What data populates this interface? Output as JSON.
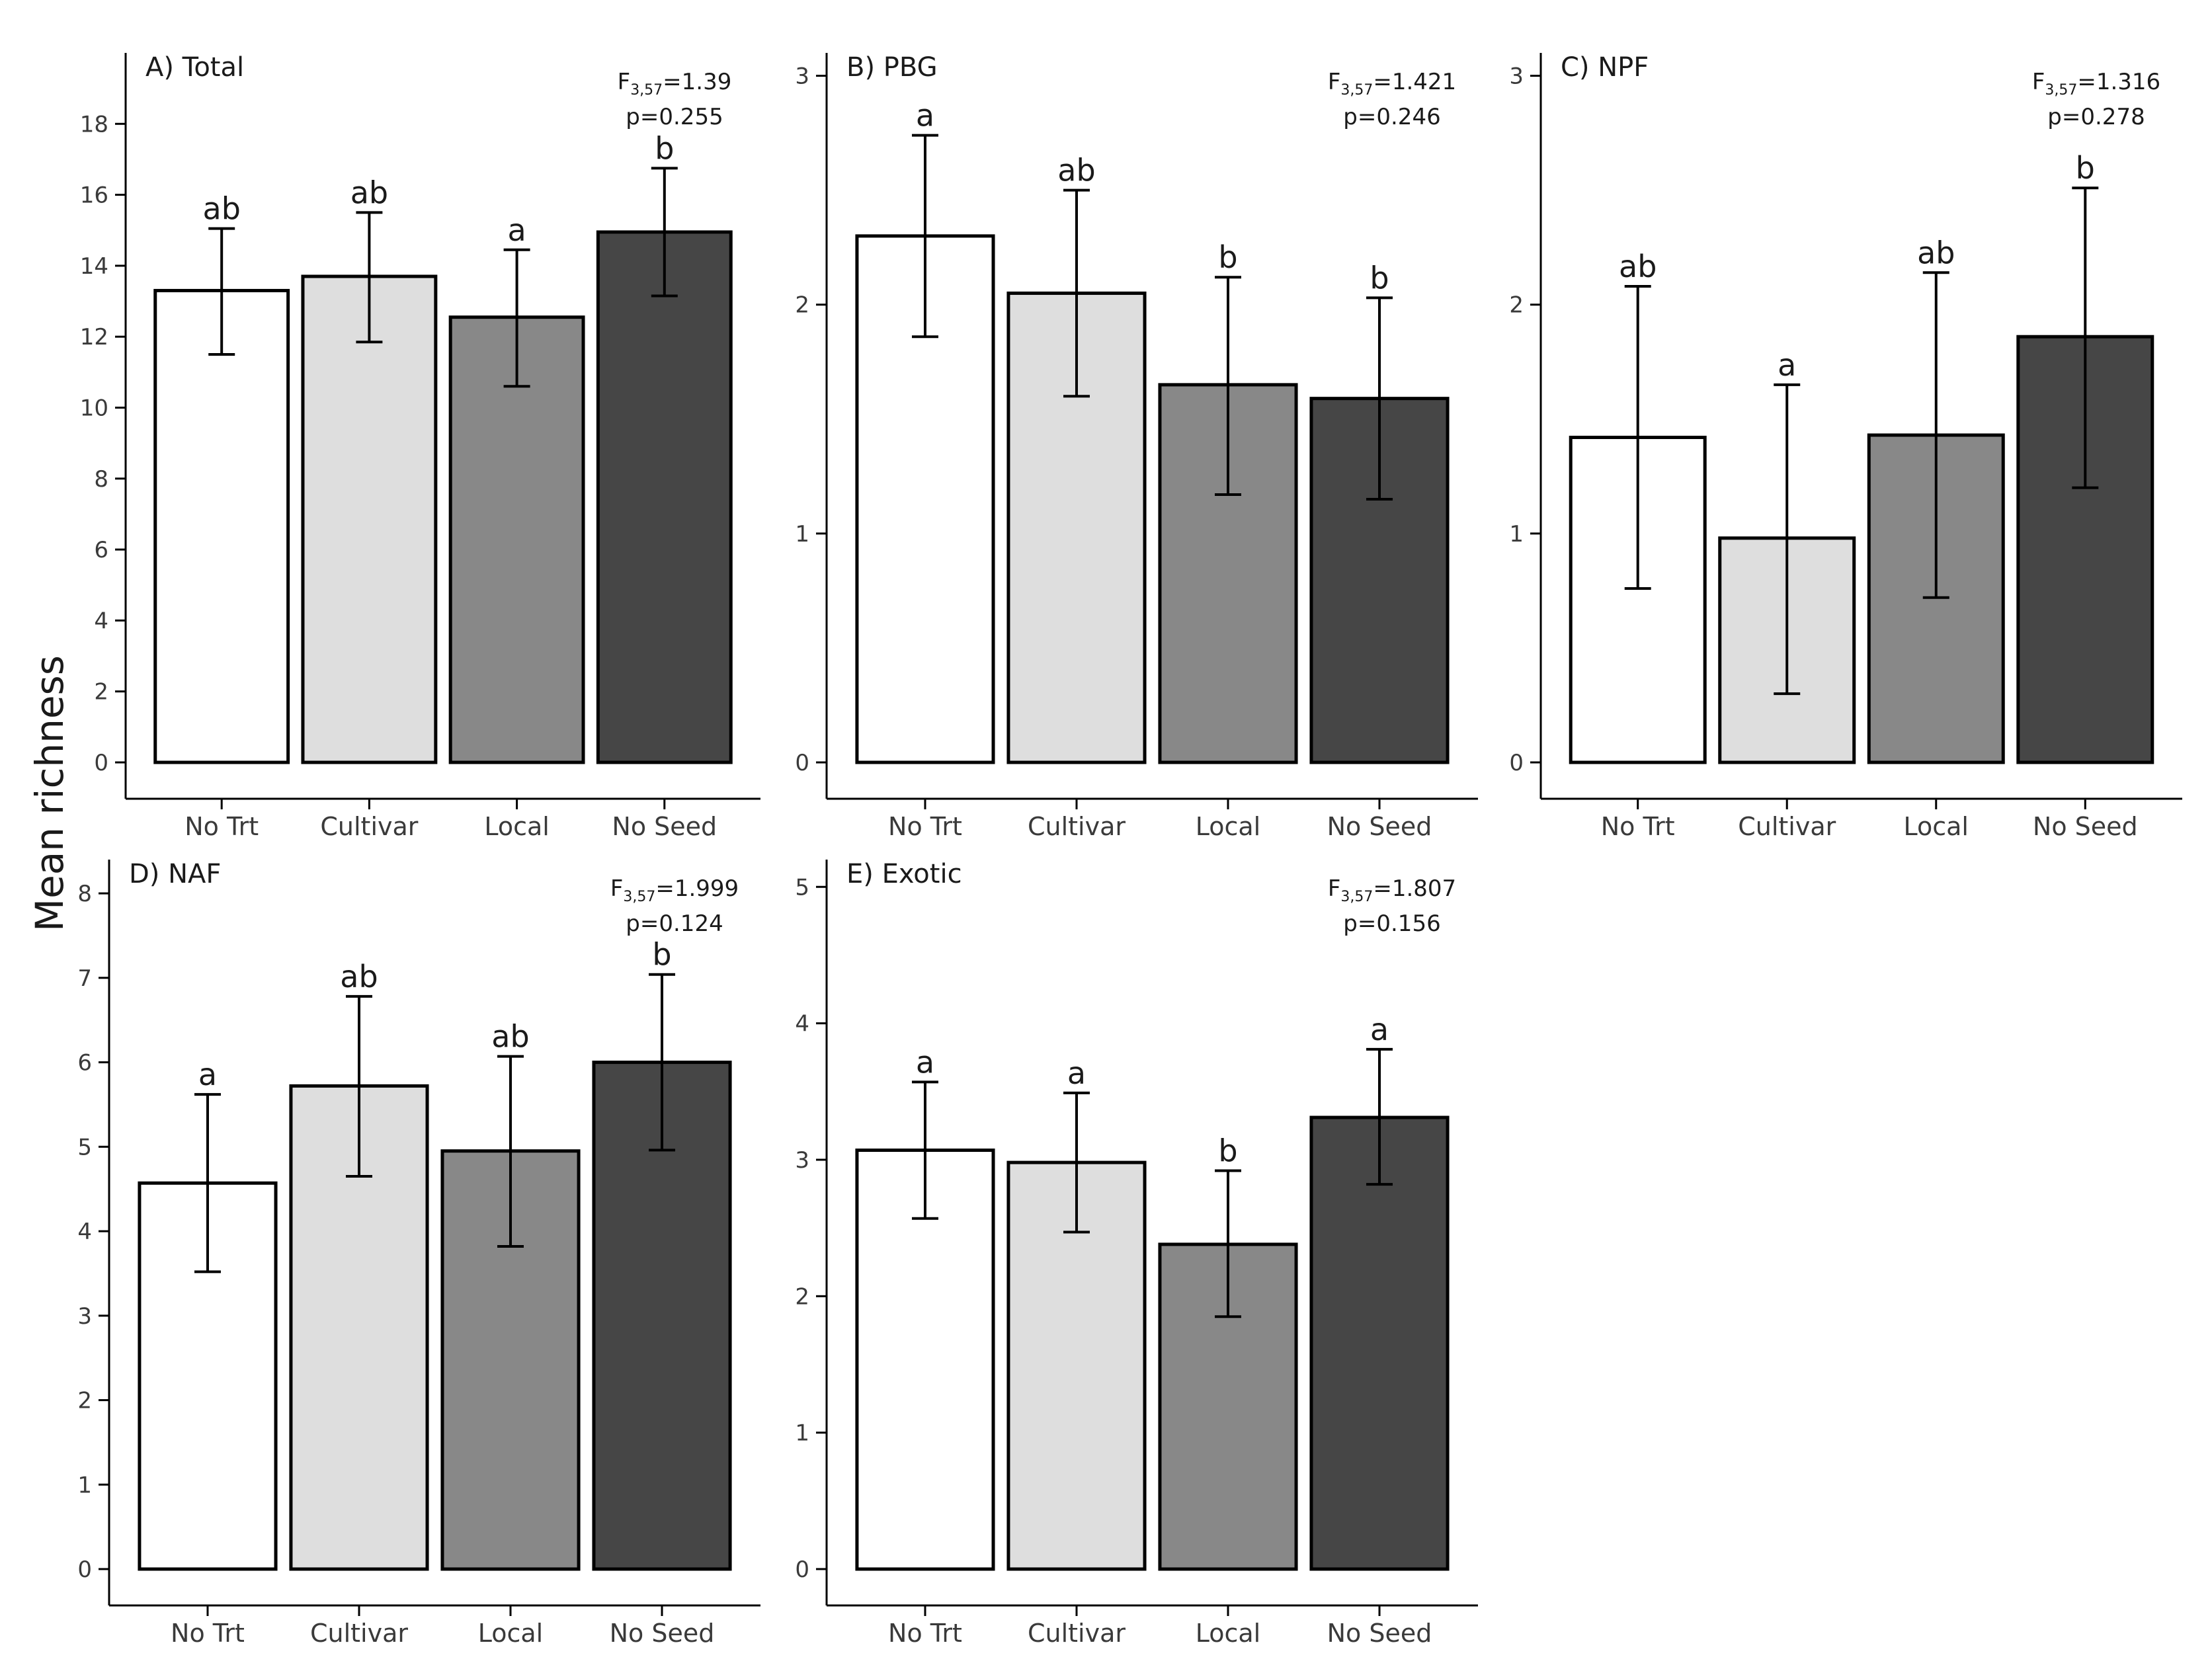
{
  "y_axis_label": "Mean richness",
  "chart_data": [
    {
      "type": "bar",
      "title": "A) Total",
      "categories": [
        "No Trt",
        "Cultivar",
        "Local",
        "No Seed"
      ],
      "values": [
        13.3,
        13.7,
        12.55,
        14.95
      ],
      "error_low": [
        11.5,
        11.85,
        10.6,
        13.15
      ],
      "error_high": [
        15.05,
        15.5,
        14.45,
        16.75
      ],
      "significance": [
        "ab",
        "ab",
        "a",
        "b"
      ],
      "stat_F_label": "F",
      "stat_df": "3,57",
      "stat_F_value": "=1.39",
      "stat_p": "p=0.255",
      "ylim": [
        0,
        20
      ],
      "yticks": [
        0,
        2,
        4,
        6,
        8,
        10,
        12,
        14,
        16,
        18
      ],
      "colors": [
        "#ffffff",
        "#dedede",
        "#888888",
        "#464646"
      ]
    },
    {
      "type": "bar",
      "title": "B) PBG",
      "categories": [
        "No Trt",
        "Cultivar",
        "Local",
        "No Seed"
      ],
      "values": [
        2.3,
        2.05,
        1.65,
        1.59
      ],
      "error_low": [
        1.86,
        1.6,
        1.17,
        1.15
      ],
      "error_high": [
        2.74,
        2.5,
        2.12,
        2.03
      ],
      "significance": [
        "a",
        "ab",
        "b",
        "b"
      ],
      "stat_F_label": "F",
      "stat_df": "3,57",
      "stat_F_value": "=1.421",
      "stat_p": "p=0.246",
      "ylim": [
        0,
        3.1
      ],
      "yticks": [
        0,
        1,
        2,
        3
      ],
      "colors": [
        "#ffffff",
        "#dedede",
        "#888888",
        "#464646"
      ]
    },
    {
      "type": "bar",
      "title": "C) NPF",
      "categories": [
        "No Trt",
        "Cultivar",
        "Local",
        "No Seed"
      ],
      "values": [
        1.42,
        0.98,
        1.43,
        1.86
      ],
      "error_low": [
        0.76,
        0.3,
        0.72,
        1.2
      ],
      "error_high": [
        2.08,
        1.65,
        2.14,
        2.51
      ],
      "significance": [
        "ab",
        "a",
        "ab",
        "b"
      ],
      "stat_F_label": "F",
      "stat_df": "3,57",
      "stat_F_value": "=1.316",
      "stat_p": "p=0.278",
      "ylim": [
        0,
        3.1
      ],
      "yticks": [
        0,
        1,
        2,
        3
      ],
      "colors": [
        "#ffffff",
        "#dedede",
        "#888888",
        "#464646"
      ]
    },
    {
      "type": "bar",
      "title": "D) NAF",
      "categories": [
        "No Trt",
        "Cultivar",
        "Local",
        "No Seed"
      ],
      "values": [
        4.57,
        5.72,
        4.95,
        6.0
      ],
      "error_low": [
        3.52,
        4.65,
        3.82,
        4.96
      ],
      "error_high": [
        5.62,
        6.78,
        6.07,
        7.04
      ],
      "significance": [
        "a",
        "ab",
        "ab",
        "b"
      ],
      "stat_F_label": "F",
      "stat_df": "3,57",
      "stat_F_value": "=1.999",
      "stat_p": "p=0.124",
      "ylim": [
        0,
        8.4
      ],
      "yticks": [
        0,
        1,
        2,
        3,
        4,
        5,
        6,
        7,
        8
      ],
      "colors": [
        "#ffffff",
        "#dedede",
        "#888888",
        "#464646"
      ]
    },
    {
      "type": "bar",
      "title": "E) Exotic",
      "categories": [
        "No Trt",
        "Cultivar",
        "Local",
        "No Seed"
      ],
      "values": [
        3.07,
        2.98,
        2.38,
        3.31
      ],
      "error_low": [
        2.57,
        2.47,
        1.85,
        2.82
      ],
      "error_high": [
        3.57,
        3.49,
        2.92,
        3.81
      ],
      "significance": [
        "a",
        "a",
        "b",
        "a"
      ],
      "stat_F_label": "F",
      "stat_df": "3,57",
      "stat_F_value": "=1.807",
      "stat_p": "p=0.156",
      "ylim": [
        0,
        5.2
      ],
      "yticks": [
        0,
        1,
        2,
        3,
        4,
        5
      ],
      "colors": [
        "#ffffff",
        "#dedede",
        "#888888",
        "#464646"
      ]
    }
  ]
}
